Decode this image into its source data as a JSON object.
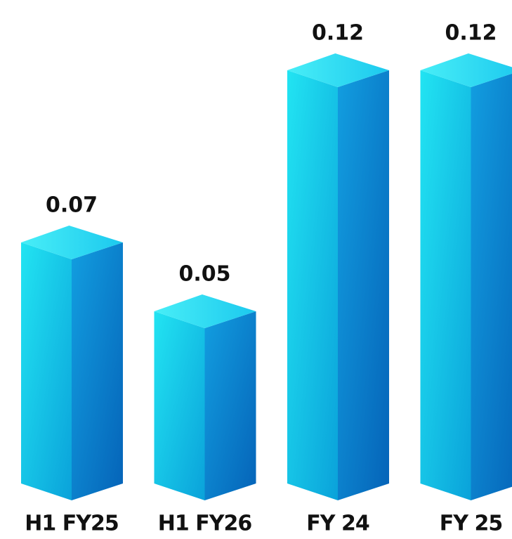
{
  "chart_data": {
    "type": "bar3d",
    "categories": [
      "H1 FY25",
      "H1 FY26",
      "FY 24",
      "FY 25"
    ],
    "values": [
      0.07,
      0.05,
      0.12,
      0.12
    ],
    "color": "#1ec8ec"
  }
}
